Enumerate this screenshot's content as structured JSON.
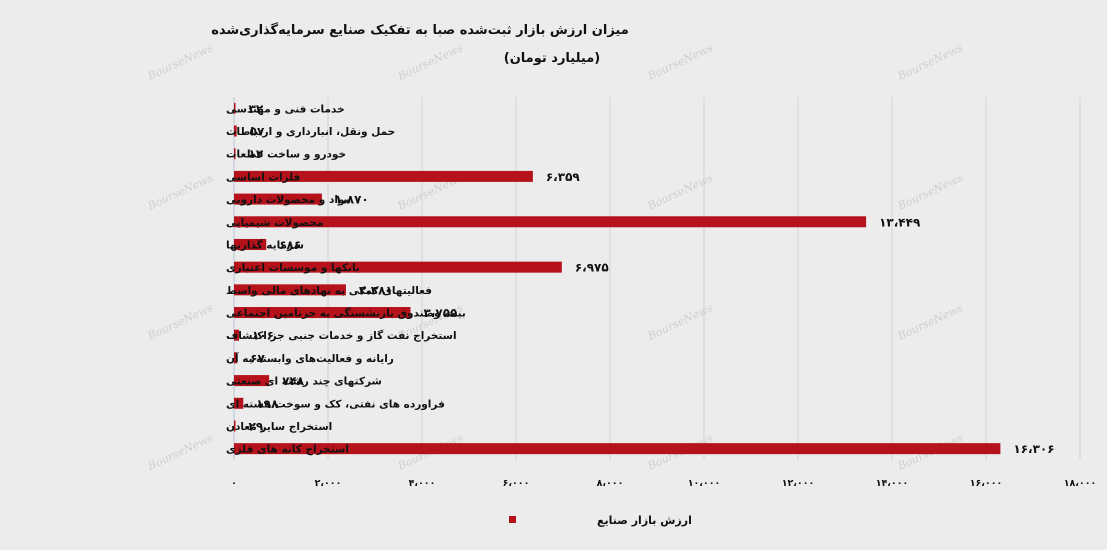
{
  "chart_data": {
    "type": "bar",
    "orientation": "horizontal",
    "title": "میزان ارزش بازار ثبت‌شده صبا به تفکیک صنایع سرمایه‌گذاری‌شده",
    "subtitle": "(میلیارد تومان)",
    "categories": [
      "خدمات فنی و مهندسی",
      "حمل ونقل، انبارداری و ارتباطات",
      "خودرو و ساخت قطعات",
      "فلزات اساسی",
      "مواد و محصولات دارویی",
      "محصولات شیمیایی",
      "سرمایه گذاریها",
      "بانکها و موسسات اعتباری",
      "فعالیتهای کمکی به نهادهای مالی واسط",
      "بیمه وصندوق بازنشستگی به جزتامین اجتماعی",
      "استخراج نفت گاز و خدمات جنبی جز اکتشاف",
      "رایانه و فعالیت‌های وابسته به آن",
      "شرکتهای چند رشته ای صنعتی",
      "فراورده های نفتی، کک و سوخت هسته ای",
      "استخراج سایر معادن",
      "استخراج کانه های فلزی"
    ],
    "series": [
      {
        "name": "ارزش بازار صنایع",
        "values": [
          32,
          57,
          12,
          6359,
          1870,
          13449,
          686,
          6975,
          2381,
          3755,
          106,
          67,
          748,
          198,
          29,
          16306
        ],
        "value_labels": [
          "۳۲",
          "۵۷",
          "۱۲",
          "۶،۳۵۹",
          "۱،۸۷۰",
          "۱۳،۴۴۹",
          "۶۸۶",
          "۶،۹۷۵",
          "۲،۳۸۱",
          "۳،۷۵۵",
          "۱۰۶",
          "۶۷",
          "۷۴۸",
          "۱۹۸",
          "۲۹",
          "۱۶،۳۰۶"
        ]
      }
    ],
    "xlim": [
      0,
      18000
    ],
    "x_ticks": [
      0,
      2000,
      4000,
      6000,
      8000,
      10000,
      12000,
      14000,
      16000,
      18000
    ],
    "x_tick_labels": [
      "۰",
      "۲،۰۰۰",
      "۴،۰۰۰",
      "۶،۰۰۰",
      "۸،۰۰۰",
      "۱۰،۰۰۰",
      "۱۲،۰۰۰",
      "۱۴،۰۰۰",
      "۱۶،۰۰۰",
      "۱۸،۰۰۰"
    ],
    "grid": true,
    "legend_position": "bottom",
    "bar_color": "#b5121b",
    "watermark": "BourseNews"
  }
}
